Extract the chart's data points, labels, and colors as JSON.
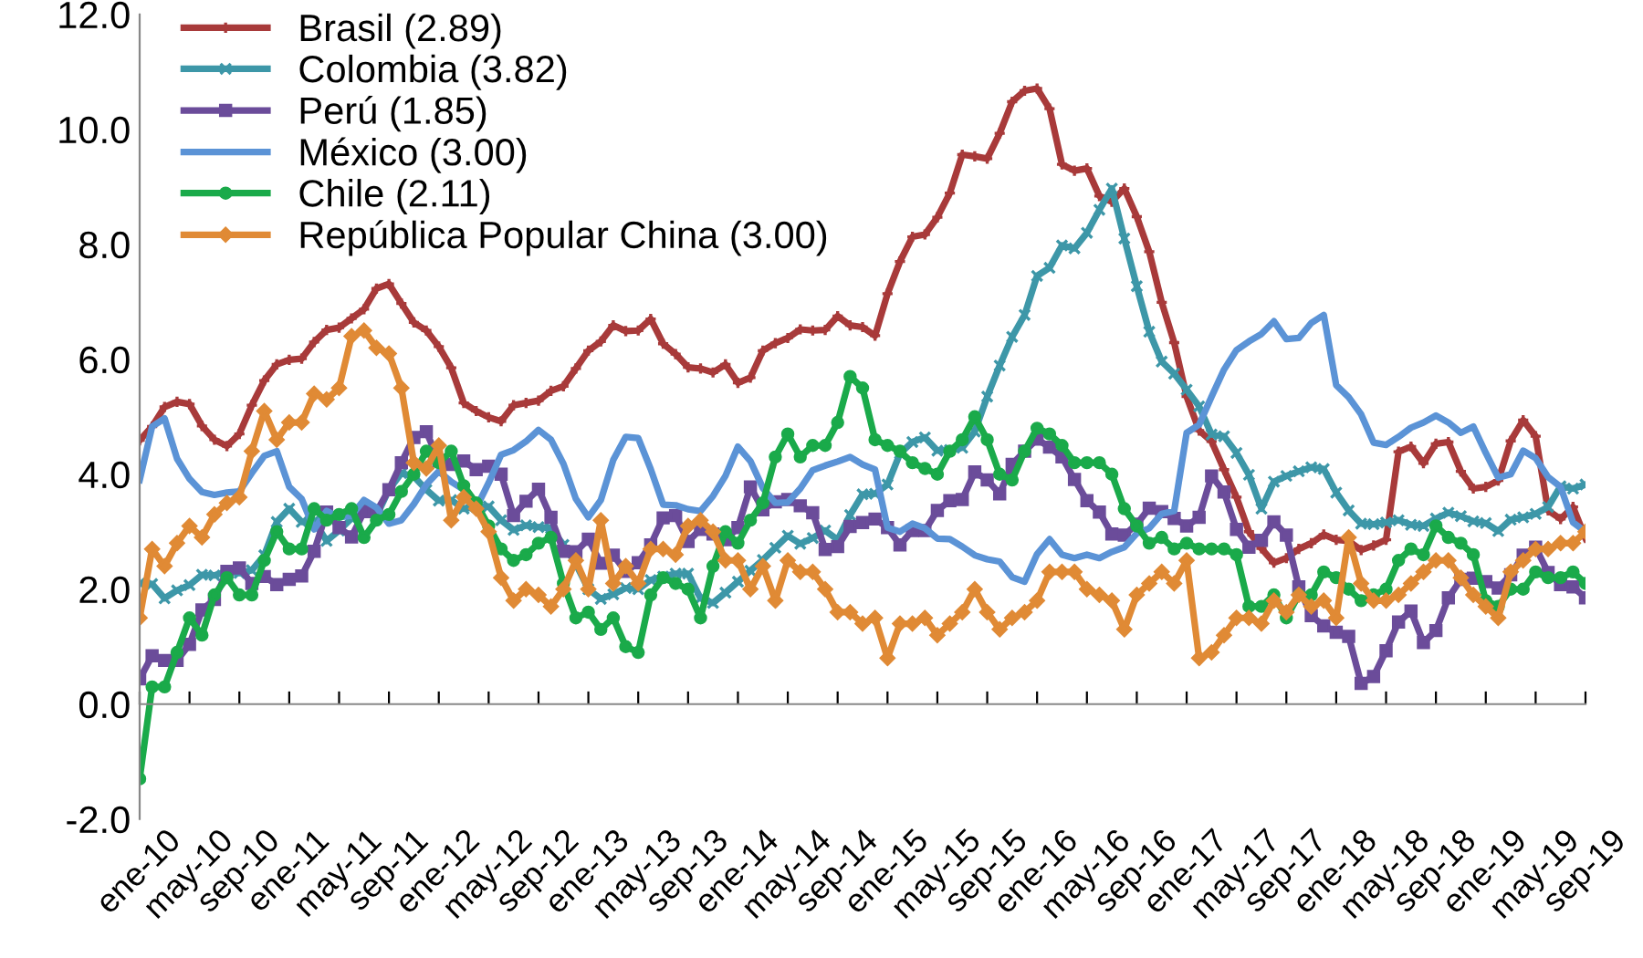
{
  "chart_data": {
    "type": "line",
    "categories": [
      "ene-10",
      null,
      null,
      null,
      "may-10",
      null,
      null,
      null,
      "sep-10",
      null,
      null,
      null,
      "ene-11",
      null,
      null,
      null,
      "may-11",
      null,
      null,
      null,
      "sep-11",
      null,
      null,
      null,
      "ene-12",
      null,
      null,
      null,
      "may-12",
      null,
      null,
      null,
      "sep-12",
      null,
      null,
      null,
      "ene-13",
      null,
      null,
      null,
      "may-13",
      null,
      null,
      null,
      "sep-13",
      null,
      null,
      null,
      "ene-14",
      null,
      null,
      null,
      "may-14",
      null,
      null,
      null,
      "sep-14",
      null,
      null,
      null,
      "ene-15",
      null,
      null,
      null,
      "may-15",
      null,
      null,
      null,
      "sep-15",
      null,
      null,
      null,
      "ene-16",
      null,
      null,
      null,
      "may-16",
      null,
      null,
      null,
      "sep-16",
      null,
      null,
      null,
      "ene-17",
      null,
      null,
      null,
      "may-17",
      null,
      null,
      null,
      "sep-17",
      null,
      null,
      null,
      "ene-18",
      null,
      null,
      null,
      "may-18",
      null,
      null,
      null,
      "sep-18",
      null,
      null,
      null,
      "ene-19",
      null,
      null,
      null,
      "may-19",
      null,
      null,
      null,
      "sep-19"
    ],
    "series": [
      {
        "name": "Brasil (2.89)",
        "color": "#a83a3a",
        "marker": "plus",
        "values": [
          4.59,
          4.83,
          5.17,
          5.26,
          5.22,
          4.84,
          4.6,
          4.49,
          4.7,
          5.2,
          5.63,
          5.91,
          5.99,
          6.01,
          6.3,
          6.51,
          6.55,
          6.71,
          6.87,
          7.23,
          7.31,
          6.97,
          6.64,
          6.5,
          6.22,
          5.85,
          5.24,
          5.1,
          4.99,
          4.92,
          5.2,
          5.24,
          5.28,
          5.45,
          5.53,
          5.84,
          6.15,
          6.31,
          6.59,
          6.49,
          6.5,
          6.7,
          6.27,
          6.09,
          5.86,
          5.84,
          5.77,
          5.91,
          5.59,
          5.68,
          6.15,
          6.28,
          6.37,
          6.52,
          6.5,
          6.51,
          6.75,
          6.59,
          6.56,
          6.41,
          7.14,
          7.7,
          8.13,
          8.17,
          8.47,
          8.89,
          9.56,
          9.53,
          9.49,
          9.93,
          10.48,
          10.67,
          10.71,
          10.36,
          9.39,
          9.28,
          9.32,
          8.84,
          8.74,
          8.97,
          8.48,
          7.87,
          6.99,
          6.29,
          5.35,
          4.76,
          4.57,
          4.08,
          3.6,
          3.0,
          2.71,
          2.46,
          2.54,
          2.7,
          2.8,
          2.95,
          2.86,
          2.84,
          2.68,
          2.76,
          2.86,
          4.39,
          4.48,
          4.19,
          4.53,
          4.56,
          4.05,
          3.75,
          3.78,
          3.89,
          4.58,
          4.94,
          4.66,
          3.37,
          3.22,
          3.43,
          2.89
        ]
      },
      {
        "name": "Colombia (3.82)",
        "color": "#3d97a8",
        "marker": "cross",
        "values": [
          2.1,
          2.09,
          1.84,
          1.98,
          2.07,
          2.25,
          2.24,
          2.31,
          2.28,
          2.33,
          2.59,
          3.17,
          3.4,
          3.17,
          3.19,
          2.84,
          3.02,
          3.23,
          3.42,
          3.27,
          3.73,
          4.02,
          3.96,
          3.73,
          3.54,
          3.55,
          3.4,
          3.43,
          3.44,
          3.2,
          3.03,
          3.11,
          3.08,
          3.06,
          2.77,
          2.44,
          2.0,
          1.83,
          1.91,
          2.02,
          2.0,
          2.16,
          2.22,
          2.27,
          2.27,
          1.84,
          1.76,
          1.94,
          2.13,
          2.32,
          2.51,
          2.72,
          2.93,
          2.79,
          2.89,
          3.02,
          2.86,
          3.29,
          3.65,
          3.66,
          3.82,
          4.36,
          4.56,
          4.64,
          4.41,
          4.42,
          4.46,
          4.74,
          5.35,
          5.89,
          6.39,
          6.77,
          7.45,
          7.59,
          7.98,
          7.93,
          8.2,
          8.6,
          8.97,
          8.1,
          7.27,
          6.48,
          5.96,
          5.75,
          5.47,
          5.18,
          4.69,
          4.66,
          4.37,
          3.99,
          3.4,
          3.87,
          3.97,
          4.05,
          4.12,
          4.09,
          3.68,
          3.37,
          3.14,
          3.13,
          3.16,
          3.2,
          3.12,
          3.1,
          3.23,
          3.33,
          3.27,
          3.18,
          3.15,
          3.01,
          3.21,
          3.25,
          3.31,
          3.43,
          3.79,
          3.75,
          3.82
        ]
      },
      {
        "name": "Perú (1.85)",
        "color": "#6b4c9a",
        "marker": "square",
        "values": [
          0.44,
          0.84,
          0.76,
          0.76,
          1.04,
          1.64,
          1.82,
          2.31,
          2.37,
          2.1,
          2.22,
          2.08,
          2.17,
          2.23,
          2.66,
          3.34,
          3.07,
          2.91,
          3.35,
          3.35,
          3.73,
          4.2,
          4.64,
          4.74,
          4.23,
          4.17,
          4.23,
          4.08,
          4.14,
          4.0,
          3.28,
          3.53,
          3.74,
          3.25,
          2.66,
          2.65,
          2.87,
          2.45,
          2.59,
          2.31,
          2.46,
          2.77,
          3.24,
          3.28,
          2.83,
          3.04,
          2.96,
          2.86,
          3.07,
          3.78,
          3.38,
          3.52,
          3.56,
          3.45,
          3.33,
          2.69,
          2.74,
          3.09,
          3.16,
          3.22,
          3.07,
          2.77,
          3.02,
          3.02,
          3.37,
          3.54,
          3.56,
          4.04,
          3.9,
          3.66,
          4.17,
          4.4,
          4.61,
          4.47,
          4.3,
          3.91,
          3.54,
          3.34,
          2.96,
          2.94,
          3.13,
          3.41,
          3.35,
          3.23,
          3.1,
          3.25,
          3.97,
          3.69,
          3.04,
          2.73,
          2.85,
          3.17,
          2.94,
          2.04,
          1.54,
          1.36,
          1.25,
          1.18,
          0.36,
          0.48,
          0.93,
          1.43,
          1.62,
          1.07,
          1.28,
          1.85,
          2.17,
          2.19,
          2.13,
          2.02,
          2.25,
          2.59,
          2.73,
          2.29,
          2.08,
          2.04,
          1.85
        ]
      },
      {
        "name": "México (3.00)",
        "color": "#5b93d6",
        "marker": "none",
        "values": [
          3.9,
          4.83,
          4.97,
          4.27,
          3.92,
          3.69,
          3.64,
          3.68,
          3.7,
          4.02,
          4.32,
          4.4,
          3.78,
          3.57,
          3.04,
          3.36,
          3.25,
          3.28,
          3.55,
          3.42,
          3.14,
          3.2,
          3.48,
          3.82,
          4.05,
          3.87,
          3.73,
          3.41,
          3.85,
          4.34,
          4.42,
          4.57,
          4.77,
          4.6,
          4.18,
          3.57,
          3.25,
          3.55,
          4.25,
          4.65,
          4.63,
          4.09,
          3.47,
          3.46,
          3.39,
          3.36,
          3.62,
          3.97,
          4.48,
          4.23,
          3.76,
          3.5,
          3.51,
          3.75,
          4.07,
          4.15,
          4.22,
          4.3,
          4.17,
          4.08,
          3.07,
          3.0,
          3.14,
          3.06,
          2.88,
          2.87,
          2.74,
          2.59,
          2.52,
          2.48,
          2.21,
          2.13,
          2.61,
          2.87,
          2.6,
          2.54,
          2.6,
          2.54,
          2.65,
          2.73,
          2.97,
          3.06,
          3.31,
          3.36,
          4.72,
          4.86,
          5.35,
          5.82,
          6.16,
          6.31,
          6.44,
          6.66,
          6.35,
          6.37,
          6.63,
          6.77,
          5.55,
          5.34,
          5.04,
          4.55,
          4.51,
          4.65,
          4.81,
          4.9,
          5.02,
          4.9,
          4.72,
          4.83,
          4.37,
          3.94,
          4.0,
          4.41,
          4.28,
          3.95,
          3.78,
          3.16,
          3.0
        ]
      },
      {
        "name": "Chile (2.11)",
        "color": "#1aaa4a",
        "marker": "circle",
        "values": [
          -1.3,
          0.3,
          0.3,
          0.9,
          1.5,
          1.2,
          1.9,
          2.2,
          1.9,
          1.9,
          2.5,
          3.0,
          2.7,
          2.7,
          3.4,
          3.2,
          3.3,
          3.4,
          2.9,
          3.2,
          3.3,
          3.7,
          4.0,
          4.4,
          4.2,
          4.4,
          3.8,
          3.5,
          3.1,
          2.7,
          2.5,
          2.6,
          2.8,
          2.9,
          2.1,
          1.5,
          1.6,
          1.3,
          1.5,
          1.0,
          0.9,
          1.9,
          2.2,
          2.1,
          2.0,
          1.5,
          2.4,
          3.0,
          2.8,
          3.2,
          3.5,
          4.3,
          4.7,
          4.3,
          4.5,
          4.5,
          4.9,
          5.7,
          5.5,
          4.6,
          4.5,
          4.4,
          4.2,
          4.1,
          4.0,
          4.4,
          4.6,
          5.0,
          4.6,
          4.0,
          3.9,
          4.4,
          4.8,
          4.7,
          4.5,
          4.2,
          4.2,
          4.2,
          4.0,
          3.4,
          3.1,
          2.8,
          2.9,
          2.7,
          2.8,
          2.7,
          2.7,
          2.7,
          2.6,
          1.7,
          1.7,
          1.9,
          1.5,
          1.9,
          1.9,
          2.3,
          2.2,
          2.0,
          1.8,
          1.9,
          2.0,
          2.5,
          2.7,
          2.6,
          3.1,
          2.9,
          2.8,
          2.6,
          1.8,
          1.7,
          2.0,
          2.0,
          2.3,
          2.2,
          2.2,
          2.3,
          2.1
        ]
      },
      {
        "name": "República Popular China (3.00)",
        "color": "#e08a35",
        "marker": "diamond",
        "values": [
          1.5,
          2.7,
          2.4,
          2.8,
          3.1,
          2.9,
          3.3,
          3.5,
          3.6,
          4.4,
          5.1,
          4.6,
          4.9,
          4.9,
          5.4,
          5.3,
          5.5,
          6.4,
          6.5,
          6.2,
          6.1,
          5.5,
          4.2,
          4.1,
          4.5,
          3.2,
          3.6,
          3.4,
          3.0,
          2.2,
          1.8,
          2.0,
          1.9,
          1.7,
          2.0,
          2.5,
          2.0,
          3.2,
          2.1,
          2.4,
          2.1,
          2.7,
          2.7,
          2.6,
          3.1,
          3.2,
          3.0,
          2.5,
          2.5,
          2.0,
          2.4,
          1.8,
          2.5,
          2.3,
          2.3,
          2.0,
          1.6,
          1.6,
          1.4,
          1.5,
          0.8,
          1.4,
          1.4,
          1.5,
          1.2,
          1.4,
          1.6,
          2.0,
          1.6,
          1.3,
          1.5,
          1.6,
          1.8,
          2.3,
          2.3,
          2.3,
          2.0,
          1.9,
          1.8,
          1.3,
          1.9,
          2.1,
          2.3,
          2.1,
          2.5,
          0.8,
          0.9,
          1.2,
          1.5,
          1.5,
          1.4,
          1.8,
          1.6,
          1.9,
          1.7,
          1.8,
          1.5,
          2.9,
          2.1,
          1.8,
          1.8,
          1.9,
          2.1,
          2.3,
          2.5,
          2.5,
          2.2,
          1.9,
          1.7,
          1.5,
          2.3,
          2.5,
          2.7,
          2.7,
          2.8,
          2.8,
          3.0
        ]
      }
    ],
    "ylim": [
      -2,
      12
    ],
    "yticks": [
      {
        "value": -2,
        "label": "-2.0"
      },
      {
        "value": 0,
        "label": "0.0"
      },
      {
        "value": 2,
        "label": "2.0"
      },
      {
        "value": 4,
        "label": "4.0"
      },
      {
        "value": 6,
        "label": "6.0"
      },
      {
        "value": 8,
        "label": "8.0"
      },
      {
        "value": 10,
        "label": "10.0"
      },
      {
        "value": 12,
        "label": "12.0"
      }
    ],
    "legend": "top left",
    "line_style": "solid"
  }
}
